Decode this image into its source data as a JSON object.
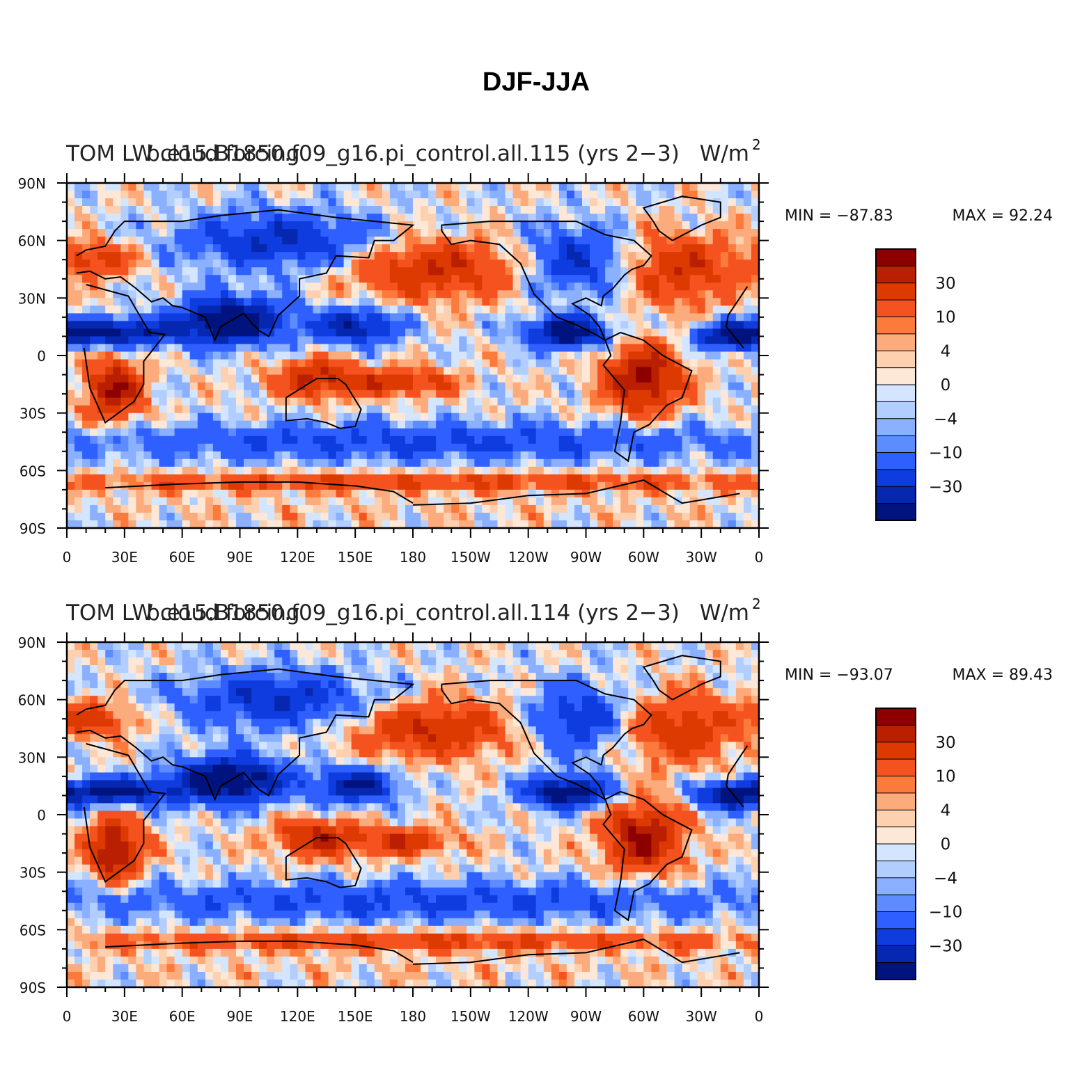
{
  "chart_data": {
    "type": "heatmap",
    "title": "DJF-JJA",
    "x_ticks": [
      "0",
      "30E",
      "60E",
      "90E",
      "120E",
      "150E",
      "180",
      "150W",
      "120W",
      "90W",
      "60W",
      "30W",
      "0"
    ],
    "y_ticks": [
      "90N",
      "60N",
      "30N",
      "0",
      "30S",
      "60S",
      "90S"
    ],
    "xlim": [
      0,
      360
    ],
    "ylim": [
      -90,
      90
    ],
    "colorbar": {
      "levels": [
        -40,
        -30,
        -20,
        -10,
        -8,
        -4,
        -2,
        0,
        2,
        4,
        8,
        10,
        20,
        30,
        40
      ],
      "labels": [
        "30",
        "10",
        "4",
        "0",
        "−4",
        "−10",
        "−30"
      ],
      "colors": [
        "#8c0000",
        "#b91f00",
        "#dc3a00",
        "#f4521f",
        "#fb7a3c",
        "#fcab7d",
        "#fdd0b0",
        "#fde8d8",
        "#d4e6ff",
        "#b2ceff",
        "#8ab0ff",
        "#5c8cff",
        "#2f60ff",
        "#0f3cdf",
        "#0628b0",
        "#00137f"
      ]
    },
    "panels": [
      {
        "label_left": "TOM LW cloud forcing",
        "label_center": "b.e15.B1850.f09_g16.pi_control.all.115 (yrs 2−3)",
        "units_base": "W/m",
        "units_exp": "2",
        "min_label": "MIN = −87.83",
        "max_label": "MAX =   92.24",
        "min": -87.83,
        "max": 92.24
      },
      {
        "label_left": "TOM LW cloud forcing",
        "label_center": "b.e15.B1850.f09_g16.pi_control.all.114 (yrs 2−3)",
        "units_base": "W/m",
        "units_exp": "2",
        "min_label": "MIN = −93.07",
        "max_label": "MAX =   89.43",
        "min": -93.07,
        "max": 89.43
      }
    ],
    "field_features": [
      {
        "region": "southern Africa",
        "lon": 25,
        "lat": -18,
        "value": 42,
        "rx": 14,
        "ry": 16
      },
      {
        "region": "South America",
        "lon": 300,
        "lat": -12,
        "value": 42,
        "rx": 20,
        "ry": 18
      },
      {
        "region": "Maritime Continent / N Australia",
        "lon": 130,
        "lat": -12,
        "value": 32,
        "rx": 22,
        "ry": 10
      },
      {
        "region": "SPCZ",
        "lon": 175,
        "lat": -14,
        "value": 28,
        "rx": 26,
        "ry": 7
      },
      {
        "region": "North Pacific",
        "lon": 190,
        "lat": 45,
        "value": 30,
        "rx": 42,
        "ry": 15
      },
      {
        "region": "North Atlantic",
        "lon": 320,
        "lat": 45,
        "value": 28,
        "rx": 28,
        "ry": 18
      },
      {
        "region": "Europe",
        "lon": 15,
        "lat": 50,
        "value": 26,
        "rx": 20,
        "ry": 9
      },
      {
        "region": "Southern Ocean ring",
        "lon": 180,
        "lat": -66,
        "value": 22,
        "rx": 200,
        "ry": 5
      },
      {
        "region": "Antarctica",
        "lon": 180,
        "lat": -80,
        "value": 3,
        "rx": 200,
        "ry": 7
      },
      {
        "region": "South Asia / Bay of Bengal",
        "lon": 85,
        "lat": 18,
        "value": -55,
        "rx": 28,
        "ry": 12
      },
      {
        "region": "Sahel / Arabian Sea",
        "lon": 25,
        "lat": 12,
        "value": -45,
        "rx": 30,
        "ry": 7
      },
      {
        "region": "NW Pacific",
        "lon": 150,
        "lat": 15,
        "value": -40,
        "rx": 22,
        "ry": 9
      },
      {
        "region": "Central America / ITCZ",
        "lon": 260,
        "lat": 12,
        "value": -50,
        "rx": 22,
        "ry": 8
      },
      {
        "region": "Atlantic ITCZ",
        "lon": 345,
        "lat": 10,
        "value": -45,
        "rx": 18,
        "ry": 7
      },
      {
        "region": "Siberia",
        "lon": 110,
        "lat": 60,
        "value": -30,
        "rx": 50,
        "ry": 15
      },
      {
        "region": "North America",
        "lon": 265,
        "lat": 50,
        "value": -28,
        "rx": 25,
        "ry": 18
      },
      {
        "region": "Southern midlatitudes",
        "lon": 180,
        "lat": -45,
        "value": -22,
        "rx": 200,
        "ry": 10
      }
    ]
  }
}
